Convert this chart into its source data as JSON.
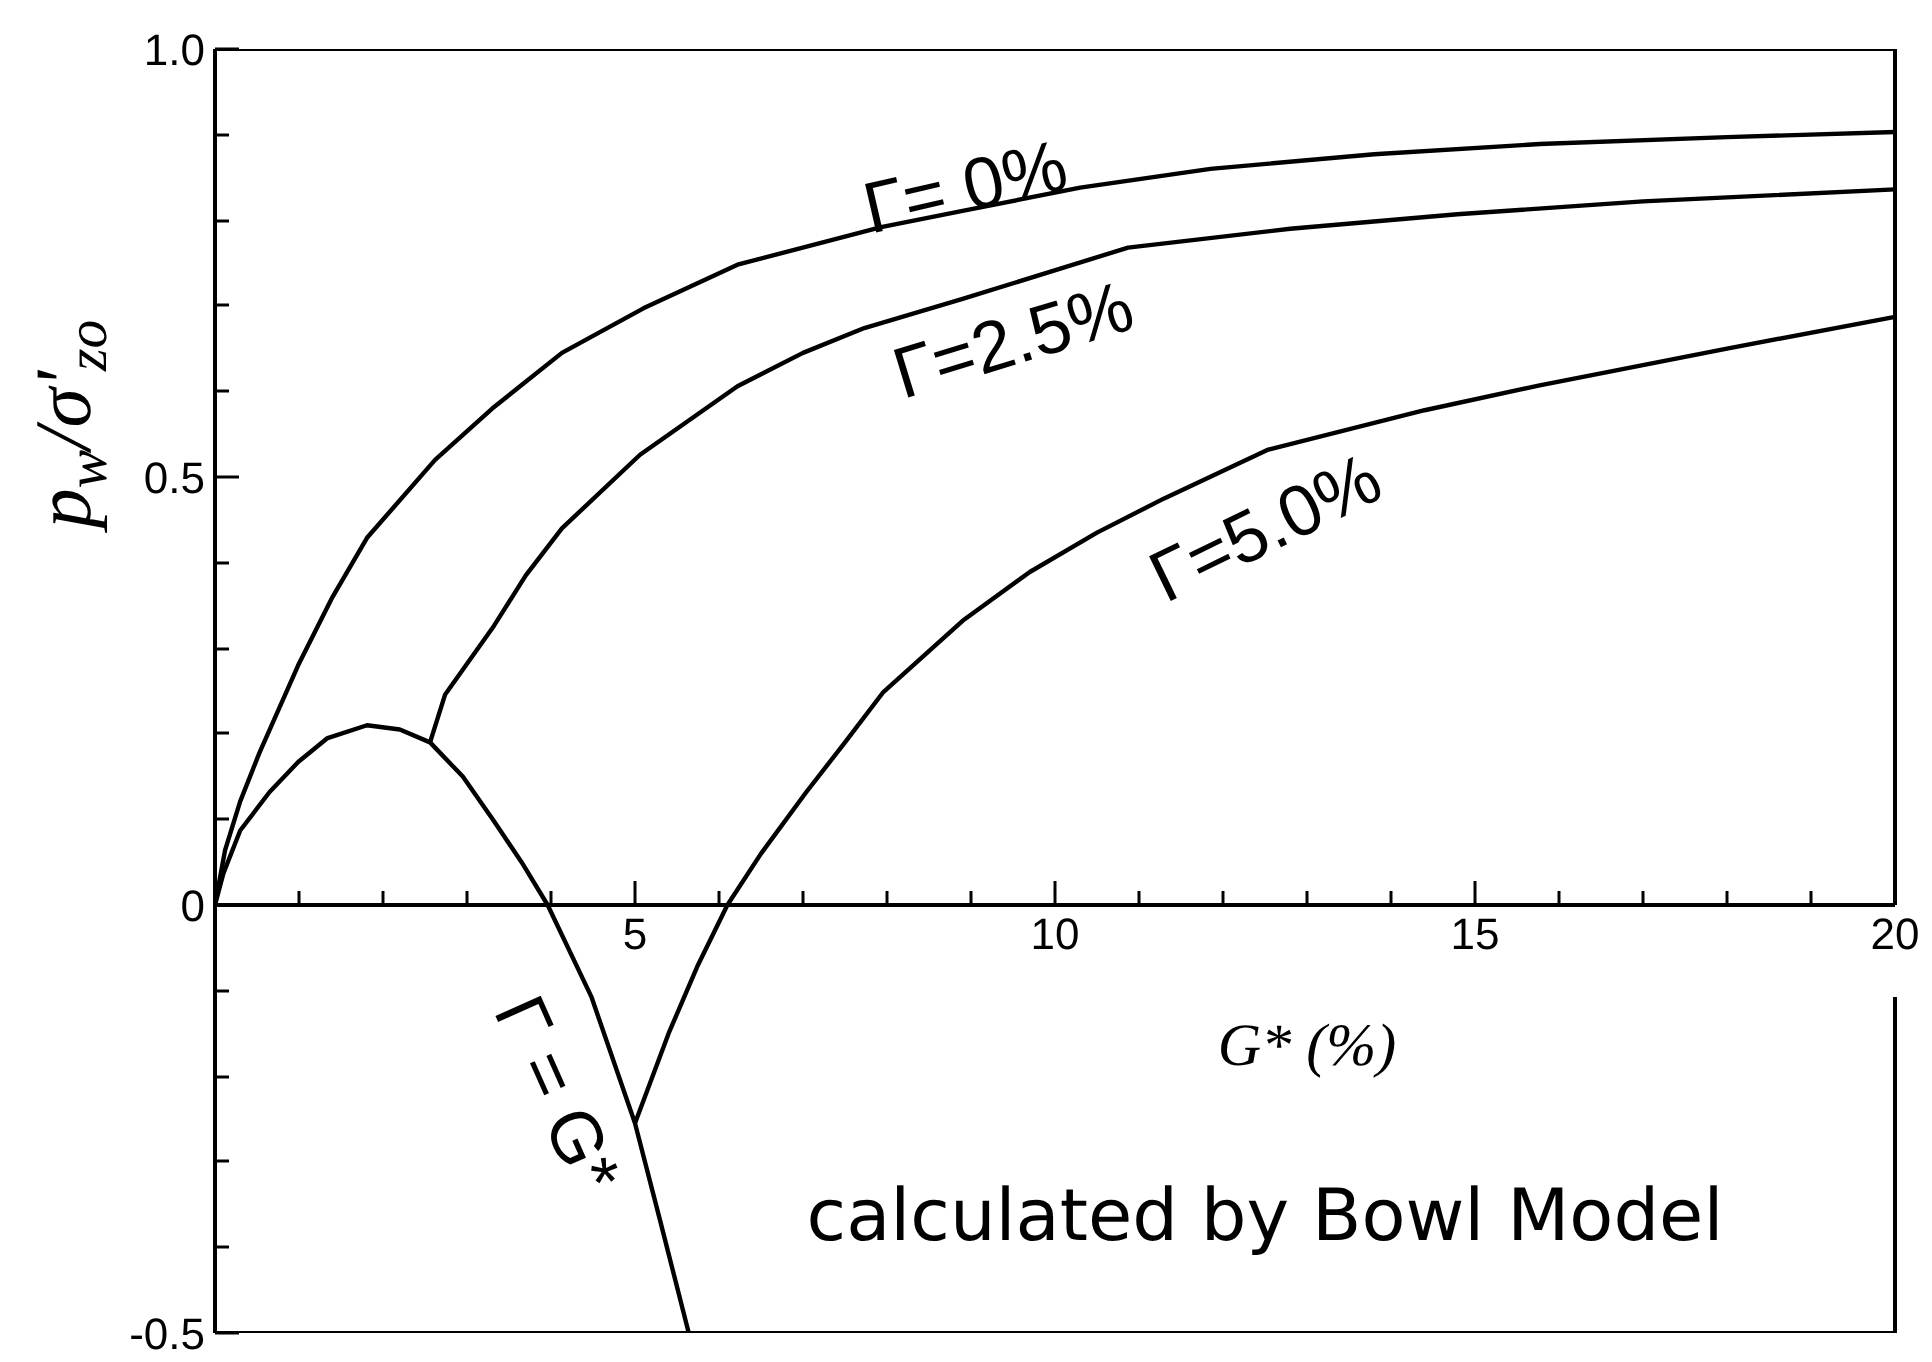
{
  "chart_data": {
    "type": "line",
    "xlabel": "G* (%)",
    "ylabel": "p$_{w}$/σ'$_{zo}$",
    "annotations": [
      "calculated by Bowl Model"
    ],
    "xlim": [
      0,
      20
    ],
    "ylim": [
      -0.5,
      1.0
    ],
    "xticks": [
      {
        "value": 1,
        "label": null
      },
      {
        "value": 2,
        "label": null
      },
      {
        "value": 3,
        "label": null
      },
      {
        "value": 4,
        "label": null
      },
      5,
      {
        "value": 6,
        "label": null
      },
      {
        "value": 7,
        "label": null
      },
      {
        "value": 8,
        "label": null
      },
      {
        "value": 9,
        "label": null
      },
      10,
      {
        "value": 11,
        "label": null
      },
      {
        "value": 12,
        "label": null
      },
      {
        "value": 13,
        "label": null
      },
      {
        "value": 14,
        "label": null
      },
      15,
      {
        "value": 16,
        "label": null
      },
      {
        "value": 17,
        "label": null
      },
      {
        "value": 18,
        "label": null
      },
      {
        "value": 19,
        "label": null
      },
      20
    ],
    "yticks": [
      -0.5,
      {
        "value": -0.4,
        "label": null
      },
      {
        "value": -0.3,
        "label": null
      },
      {
        "value": -0.2,
        "label": null
      },
      {
        "value": -0.1,
        "label": null
      },
      0,
      {
        "value": 0.1,
        "label": null
      },
      {
        "value": 0.2,
        "label": null
      },
      {
        "value": 0.3,
        "label": null
      },
      {
        "value": 0.4,
        "label": null
      },
      0.5,
      {
        "value": 0.6,
        "label": null
      },
      {
        "value": 0.7,
        "label": null
      },
      {
        "value": 0.8,
        "label": null
      },
      {
        "value": 0.9,
        "label": null
      },
      {
        "value": 1.0,
        "label": "1.0"
      }
    ],
    "series": [
      {
        "name": "Γ= 0%",
        "color": "#000000",
        "x": [
          0,
          0.12,
          0.3,
          0.53,
          0.99,
          1.4,
          1.81,
          2.62,
          3.3,
          4.13,
          5.1,
          6.22,
          7.93,
          8.9,
          10.3,
          11.85,
          13.8,
          15.77,
          18,
          20
        ],
        "values": [
          0,
          0.064,
          0.121,
          0.178,
          0.28,
          0.36,
          0.429,
          0.52,
          0.58,
          0.645,
          0.697,
          0.748,
          0.792,
          0.811,
          0.838,
          0.86,
          0.877,
          0.889,
          0.897,
          0.903
        ]
      },
      {
        "name": "Γ=2.5%",
        "color": "#000000",
        "x": [
          2.56,
          2.74,
          3.32,
          3.7,
          4.13,
          5.06,
          6.22,
          7.0,
          7.73,
          8.9,
          10.87,
          12.8,
          14.79,
          17,
          20
        ],
        "values": [
          0.19,
          0.246,
          0.326,
          0.385,
          0.44,
          0.526,
          0.606,
          0.645,
          0.674,
          0.708,
          0.768,
          0.79,
          0.807,
          0.822,
          0.836
        ]
      },
      {
        "name": "Γ=5.0%",
        "color": "#000000",
        "x": [
          5.0,
          5.4,
          5.75,
          6.1,
          6.5,
          7.04,
          7.5,
          7.95,
          8.9,
          9.7,
          10.5,
          11.3,
          12.54,
          14.4,
          15.77,
          18,
          20
        ],
        "values": [
          -0.255,
          -0.15,
          -0.07,
          0,
          0.06,
          0.132,
          0.19,
          0.248,
          0.332,
          0.389,
          0.435,
          0.475,
          0.532,
          0.578,
          0.607,
          0.65,
          0.687
        ]
      },
      {
        "name": "Γ = G*",
        "color": "#000000",
        "x": [
          0,
          0.1,
          0.3,
          0.65,
          0.99,
          1.34,
          1.81,
          2.2,
          2.56,
          2.95,
          3.32,
          3.65,
          3.96,
          4.48,
          5.0,
          5.3,
          5.64
        ],
        "values": [
          0,
          0.037,
          0.087,
          0.132,
          0.167,
          0.195,
          0.21,
          0.205,
          0.19,
          0.15,
          0.098,
          0.05,
          0,
          -0.107,
          -0.255,
          -0.369,
          -0.5
        ]
      }
    ]
  }
}
